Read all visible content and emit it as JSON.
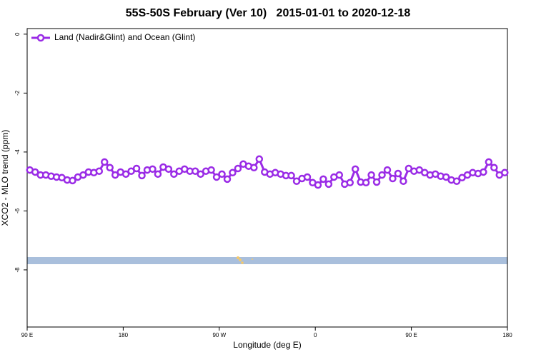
{
  "chart_data": {
    "type": "line",
    "title": "55S-50S February (Ver 10)   2015-01-01 to 2020-12-18",
    "xlabel": "Longitude (deg E)",
    "ylabel": "XCO2 - MLO trend (ppm)",
    "xlim": [
      90,
      540
    ],
    "xticks": [
      {
        "value": 90,
        "label": "90 E"
      },
      180,
      {
        "value": 270,
        "label": "90 W"
      },
      {
        "value": 360,
        "label": "0"
      },
      {
        "value": 450,
        "label": "90 E"
      },
      {
        "value": 540,
        "label": "180"
      }
    ],
    "ylim": [
      -9.94,
      0.19
    ],
    "yticks": [
      0,
      -2,
      -4,
      -6,
      -8
    ],
    "legend": "top-left",
    "x": [
      92.5,
      97.5,
      102.5,
      107.5,
      112.5,
      117.5,
      122.5,
      127.5,
      132.5,
      137.5,
      142.5,
      147.5,
      152.5,
      157.5,
      162.5,
      167.5,
      172.5,
      177.5,
      182.5,
      187.5,
      192.5,
      197.5,
      202.5,
      207.5,
      212.5,
      217.5,
      222.5,
      227.5,
      232.5,
      237.5,
      242.5,
      247.5,
      252.5,
      257.5,
      262.5,
      267.5,
      272.5,
      277.5,
      282.5,
      287.5,
      292.5,
      297.5,
      302.5,
      307.5,
      312.5,
      317.5,
      322.5,
      327.5,
      332.5,
      337.5,
      342.5,
      347.5,
      352.5,
      357.5,
      362.5,
      367.5,
      372.5,
      377.5,
      382.5,
      387.5,
      392.5,
      397.5,
      402.5,
      407.5,
      412.5,
      417.5,
      422.5,
      427.5,
      432.5,
      437.5,
      442.5,
      447.5,
      452.5,
      457.5,
      462.5,
      467.5,
      472.5,
      477.5,
      482.5,
      487.5,
      492.5,
      497.5,
      502.5,
      507.5,
      512.5,
      517.5,
      522.5,
      527.5,
      532.5,
      537.5
    ],
    "series": [
      {
        "name": "Land (Nadir&Glint) and Ocean (Glint)",
        "color": "#9a2be6",
        "values": [
          -4.61,
          -4.68,
          -4.78,
          -4.78,
          -4.82,
          -4.85,
          -4.87,
          -4.95,
          -4.97,
          -4.85,
          -4.78,
          -4.68,
          -4.7,
          -4.65,
          -4.34,
          -4.53,
          -4.78,
          -4.68,
          -4.75,
          -4.65,
          -4.56,
          -4.8,
          -4.61,
          -4.58,
          -4.75,
          -4.51,
          -4.58,
          -4.75,
          -4.65,
          -4.58,
          -4.65,
          -4.65,
          -4.75,
          -4.65,
          -4.61,
          -4.85,
          -4.75,
          -4.92,
          -4.7,
          -4.56,
          -4.41,
          -4.48,
          -4.53,
          -4.24,
          -4.68,
          -4.75,
          -4.7,
          -4.75,
          -4.8,
          -4.8,
          -4.99,
          -4.9,
          -4.85,
          -5.04,
          -5.12,
          -4.92,
          -5.09,
          -4.85,
          -4.78,
          -5.09,
          -5.04,
          -4.58,
          -5.02,
          -5.04,
          -4.78,
          -5.02,
          -4.78,
          -4.61,
          -4.9,
          -4.73,
          -4.99,
          -4.56,
          -4.65,
          -4.61,
          -4.7,
          -4.78,
          -4.75,
          -4.82,
          -4.85,
          -4.95,
          -4.99,
          -4.87,
          -4.78,
          -4.7,
          -4.73,
          -4.68,
          -4.34,
          -4.53,
          -4.78,
          -4.7
        ]
      }
    ]
  }
}
